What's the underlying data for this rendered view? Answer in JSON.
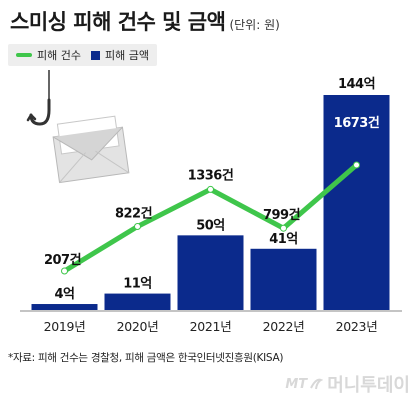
{
  "header": {
    "title": "스미싱 피해 건수 및 금액",
    "unit": "(단위: 원)"
  },
  "legend": [
    {
      "label": "피해 건수",
      "color": "#3fc64b",
      "kind": "line"
    },
    {
      "label": "피해 금액",
      "color": "#0b2a8c",
      "kind": "box"
    }
  ],
  "colors": {
    "bar": "#0b2a8c",
    "line": "#3fc64b",
    "axis": "#888888"
  },
  "icon": "envelope-on-fishing-hook-icon",
  "chart_data": {
    "type": "bar",
    "categories": [
      "2019년",
      "2020년",
      "2021년",
      "2022년",
      "2023년"
    ],
    "series": [
      {
        "name": "피해 금액",
        "type": "bar",
        "values": [
          4,
          11,
          50,
          41,
          144
        ],
        "labels": [
          "4억",
          "11억",
          "50억",
          "41억",
          "144억"
        ]
      },
      {
        "name": "피해 건수",
        "type": "line",
        "values": [
          207,
          822,
          1336,
          799,
          1673
        ],
        "labels": [
          "207건",
          "822건",
          "1336건",
          "799건",
          "1673건"
        ]
      }
    ]
  },
  "footnote": "*자료: 피해 건수는 경찰청, 피해 금액은 한국인터넷진흥원(KISA)",
  "brand": {
    "mt": "MT",
    "name": "머니투데이"
  }
}
